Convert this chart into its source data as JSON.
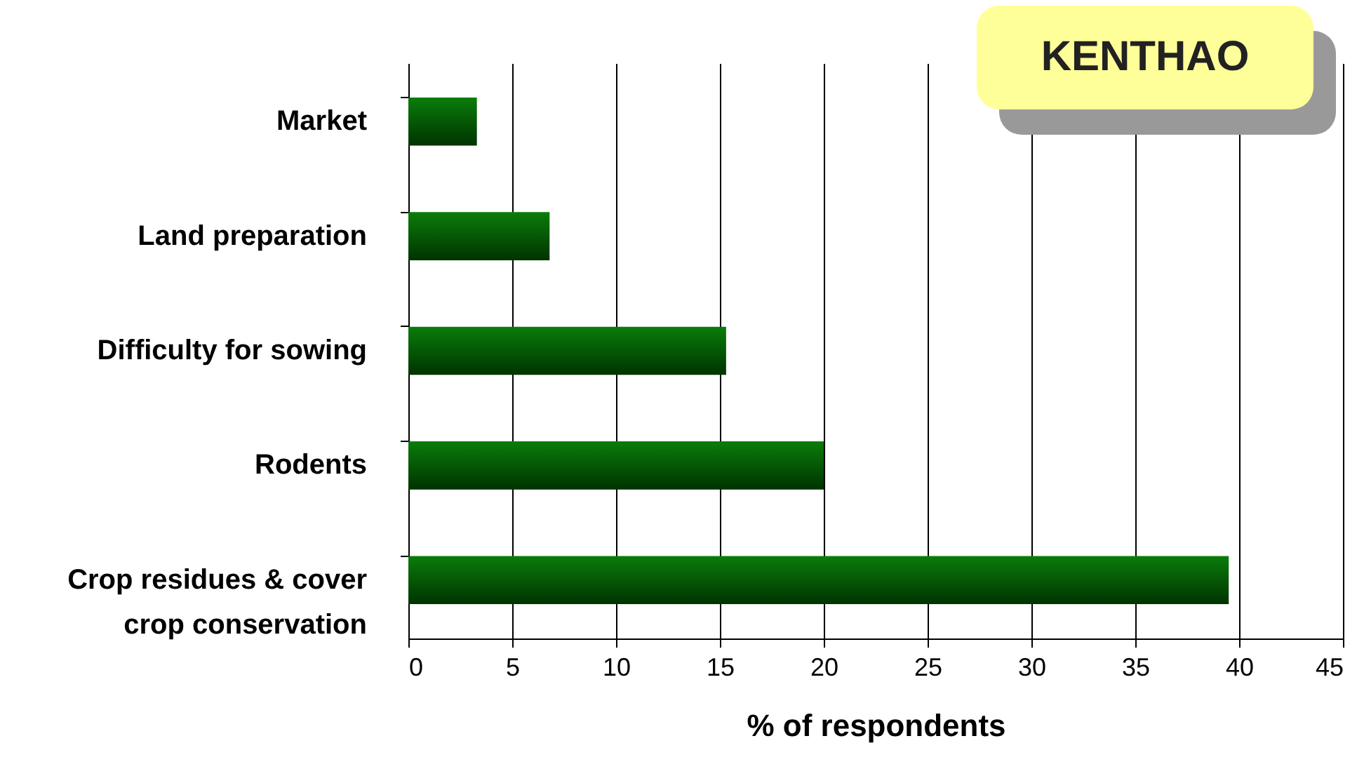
{
  "chart_data": {
    "type": "bar",
    "orientation": "horizontal",
    "title": "KENTHAO",
    "xlabel": "% of respondents",
    "categories": [
      "Market",
      "Land preparation",
      "Difficulty for sowing",
      "Rodents",
      "Crop residues & cover crop conservation"
    ],
    "values": [
      3.3,
      6.8,
      15.3,
      20,
      39.5
    ],
    "color": "#0a7d0a",
    "xlim": [
      0,
      45
    ],
    "xticks": [
      0,
      5,
      10,
      15,
      20,
      25,
      30,
      35,
      40,
      45
    ],
    "grid": "x"
  }
}
